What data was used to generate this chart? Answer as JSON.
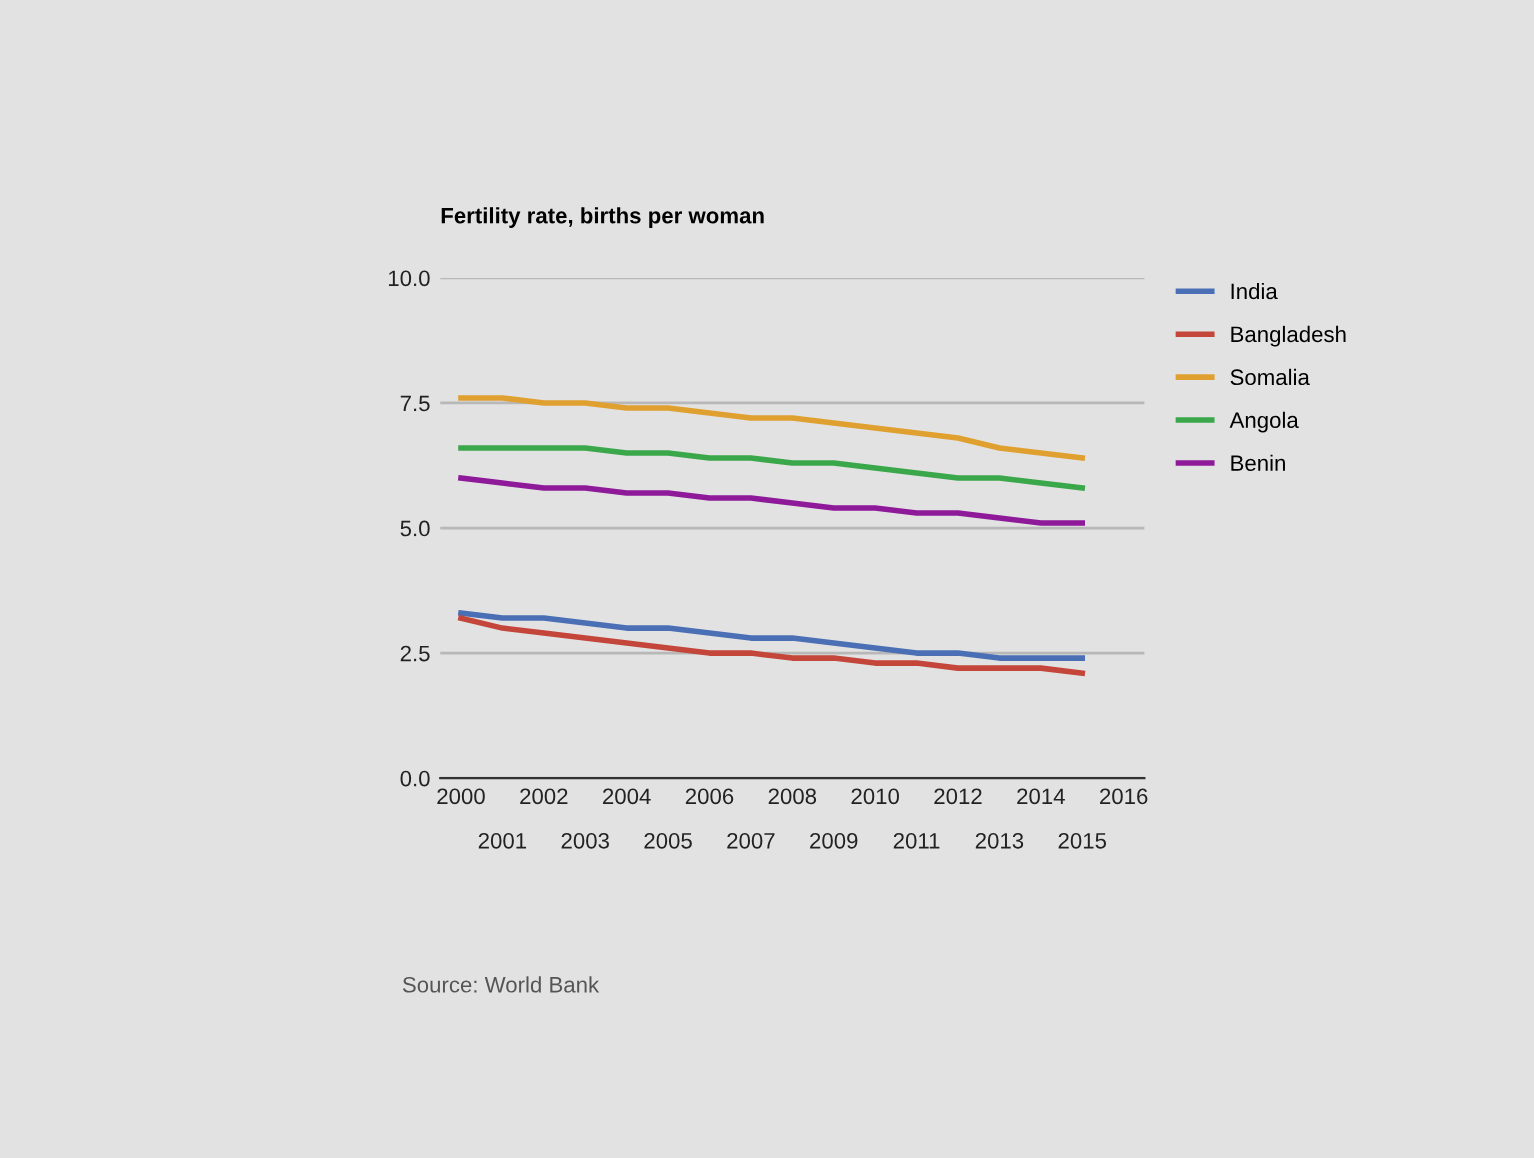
{
  "chart_data": {
    "type": "line",
    "title": "Fertility rate, births per woman",
    "x": [
      2000,
      2001,
      2002,
      2003,
      2004,
      2005,
      2006,
      2007,
      2008,
      2009,
      2010,
      2011,
      2012,
      2013,
      2014,
      2015
    ],
    "series": [
      {
        "name": "India",
        "color": "#4a6fb5",
        "values": [
          3.3,
          3.2,
          3.2,
          3.1,
          3.0,
          3.0,
          2.9,
          2.8,
          2.8,
          2.7,
          2.6,
          2.5,
          2.5,
          2.4,
          2.4,
          2.4
        ]
      },
      {
        "name": "Bangladesh",
        "color": "#c4463a",
        "values": [
          3.2,
          3.0,
          2.9,
          2.8,
          2.7,
          2.6,
          2.5,
          2.5,
          2.4,
          2.4,
          2.3,
          2.3,
          2.2,
          2.2,
          2.2,
          2.1
        ]
      },
      {
        "name": "Somalia",
        "color": "#e0a030",
        "values": [
          7.6,
          7.6,
          7.5,
          7.5,
          7.4,
          7.4,
          7.3,
          7.2,
          7.2,
          7.1,
          7.0,
          6.9,
          6.8,
          6.6,
          6.5,
          6.4
        ]
      },
      {
        "name": "Angola",
        "color": "#3aa84a",
        "values": [
          6.6,
          6.6,
          6.6,
          6.6,
          6.5,
          6.5,
          6.4,
          6.4,
          6.3,
          6.3,
          6.2,
          6.1,
          6.0,
          6.0,
          5.9,
          5.8
        ]
      },
      {
        "name": "Benin",
        "color": "#8e1a9a",
        "values": [
          6.0,
          5.9,
          5.8,
          5.8,
          5.7,
          5.7,
          5.6,
          5.6,
          5.5,
          5.4,
          5.4,
          5.3,
          5.3,
          5.2,
          5.1,
          5.1
        ]
      }
    ],
    "xlim": [
      1999.5,
      2016.5
    ],
    "xticks": [
      2000,
      2002,
      2004,
      2006,
      2008,
      2010,
      2012,
      2014,
      2016
    ],
    "x2lim": [
      1999.5,
      2016.5
    ],
    "x2ticks": [
      2001,
      2003,
      2005,
      2007,
      2009,
      2011,
      2013,
      2015
    ],
    "ylim": [
      0,
      10
    ],
    "yticks": [
      {
        "value": 0,
        "label": "0.0"
      },
      {
        "value": 2.5,
        "label": "2.5"
      },
      {
        "value": 5,
        "label": "5.0"
      },
      {
        "value": 7.5,
        "label": "7.5"
      },
      {
        "value": 10,
        "label": "10.0"
      }
    ],
    "grid": "y",
    "legend": "right",
    "marker": "none",
    "line_style": "solid",
    "annotations": [
      "Source: World Bank"
    ]
  }
}
